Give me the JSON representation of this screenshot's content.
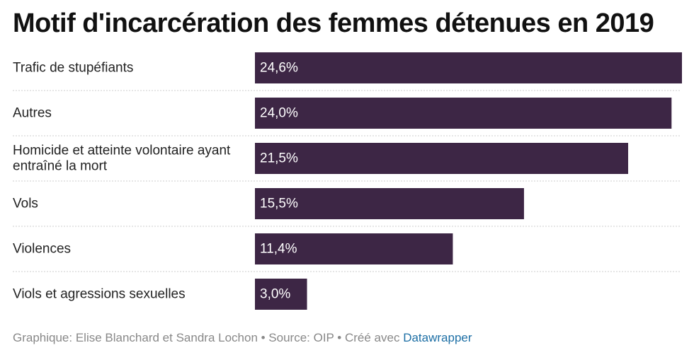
{
  "chart_data": {
    "type": "bar",
    "orientation": "horizontal",
    "title": "Motif d'incarcération des femmes détenues en 2019",
    "categories": [
      [
        "Trafic de stupéfiants"
      ],
      [
        "Autres"
      ],
      [
        "Homicide et atteinte volontaire ayant",
        "entraîné la mort"
      ],
      [
        "Vols"
      ],
      [
        "Violences"
      ],
      [
        "Viols et agressions sexuelles"
      ]
    ],
    "values": [
      24.6,
      24.0,
      21.5,
      15.5,
      11.4,
      3.0
    ],
    "value_labels": [
      "24,6%",
      "24,0%",
      "21,5%",
      "15,5%",
      "11,4%",
      "3,0%"
    ],
    "xlim": [
      0,
      24.6
    ],
    "bar_color": "#3d2645",
    "label_color": "#ffffff",
    "grid": false
  },
  "footer": {
    "credit": "Graphique: Elise Blanchard et Sandra Lochon • Source: OIP • Créé avec ",
    "tool": "Datawrapper"
  }
}
